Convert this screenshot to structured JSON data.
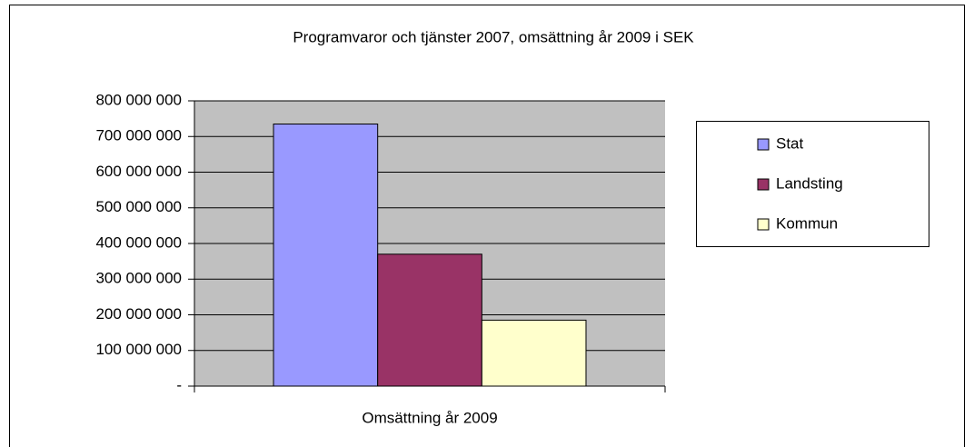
{
  "chart_data": {
    "type": "bar",
    "title": "Programvaror och tjänster 2007, omsättning år 2009 i SEK",
    "categories": [
      "Omsättning år 2009"
    ],
    "series": [
      {
        "name": "Stat",
        "color": "#9999ff",
        "values": [
          735000000
        ]
      },
      {
        "name": "Landsting",
        "color": "#993366",
        "values": [
          370000000
        ]
      },
      {
        "name": "Kommun",
        "color": "#ffffcc",
        "values": [
          185000000
        ]
      }
    ],
    "ylim": [
      0,
      800000000
    ],
    "yticks": [
      {
        "value": 0,
        "label": "-"
      },
      {
        "value": 100000000,
        "label": "100 000 000"
      },
      {
        "value": 200000000,
        "label": "200 000 000"
      },
      {
        "value": 300000000,
        "label": "300 000 000"
      },
      {
        "value": 400000000,
        "label": "400 000 000"
      },
      {
        "value": 500000000,
        "label": "500 000 000"
      },
      {
        "value": 600000000,
        "label": "600 000 000"
      },
      {
        "value": 700000000,
        "label": "700 000 000"
      },
      {
        "value": 800000000,
        "label": "800 000 000"
      }
    ],
    "grid": true,
    "plot_background": "#c0c0c0",
    "legend": "right"
  }
}
